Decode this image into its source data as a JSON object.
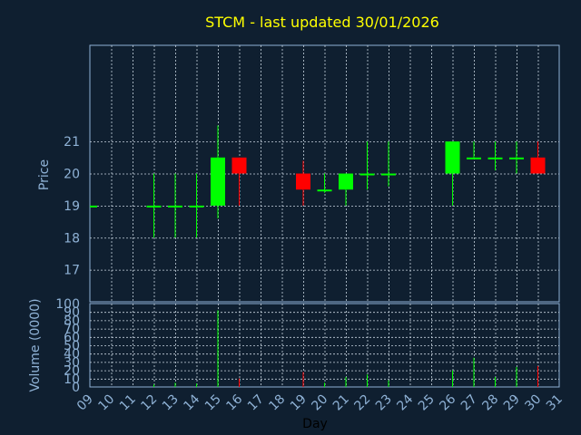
{
  "chart_data": [
    {
      "type": "candlestick",
      "title": "STCM - last updated 30/01/2026",
      "ylabel": "Price",
      "ylim": [
        16,
        24
      ],
      "yticks": [
        17,
        18,
        19,
        20,
        21
      ],
      "grid": true,
      "candles": [
        {
          "day": 9,
          "open": 19.0,
          "high": 19.0,
          "low": 19.0,
          "close": 19.0
        },
        {
          "day": 12,
          "open": 19.0,
          "high": 20.0,
          "low": 18.0,
          "close": 19.0
        },
        {
          "day": 13,
          "open": 19.0,
          "high": 20.0,
          "low": 18.0,
          "close": 19.0
        },
        {
          "day": 14,
          "open": 19.0,
          "high": 20.0,
          "low": 18.0,
          "close": 19.0
        },
        {
          "day": 15,
          "open": 19.0,
          "high": 21.5,
          "low": 18.6,
          "close": 20.5
        },
        {
          "day": 16,
          "open": 20.5,
          "high": 20.5,
          "low": 19.0,
          "close": 20.0
        },
        {
          "day": 19,
          "open": 20.0,
          "high": 20.4,
          "low": 19.0,
          "close": 19.5
        },
        {
          "day": 20,
          "open": 19.45,
          "high": 20.0,
          "low": 19.4,
          "close": 19.5
        },
        {
          "day": 21,
          "open": 19.5,
          "high": 20.0,
          "low": 19.0,
          "close": 20.0
        },
        {
          "day": 22,
          "open": 20.0,
          "high": 21.0,
          "low": 19.5,
          "close": 20.0
        },
        {
          "day": 23,
          "open": 20.0,
          "high": 21.0,
          "low": 19.6,
          "close": 20.0
        },
        {
          "day": 26,
          "open": 20.0,
          "high": 21.0,
          "low": 19.0,
          "close": 21.0
        },
        {
          "day": 27,
          "open": 20.5,
          "high": 21.0,
          "low": 20.5,
          "close": 20.5
        },
        {
          "day": 28,
          "open": 20.5,
          "high": 21.0,
          "low": 20.1,
          "close": 20.5
        },
        {
          "day": 29,
          "open": 20.5,
          "high": 21.0,
          "low": 20.0,
          "close": 20.5
        },
        {
          "day": 30,
          "open": 20.5,
          "high": 21.0,
          "low": 20.0,
          "close": 20.0
        }
      ]
    },
    {
      "type": "bar",
      "ylabel": "Volume (0000)",
      "xlabel": "Day",
      "ylim": [
        0,
        100
      ],
      "yticks": [
        0,
        10,
        20,
        30,
        40,
        50,
        60,
        70,
        80,
        90,
        100
      ],
      "xticks": [
        "09",
        "10",
        "11",
        "12",
        "13",
        "14",
        "15",
        "16",
        "17",
        "18",
        "19",
        "20",
        "21",
        "22",
        "23",
        "24",
        "25",
        "26",
        "27",
        "28",
        "29",
        "30",
        "31"
      ],
      "grid": true,
      "bars": [
        {
          "day": 9,
          "value": 0
        },
        {
          "day": 12,
          "value": 3,
          "direction": "up"
        },
        {
          "day": 13,
          "value": 5,
          "direction": "up"
        },
        {
          "day": 14,
          "value": 4,
          "direction": "up"
        },
        {
          "day": 15,
          "value": 92,
          "direction": "up"
        },
        {
          "day": 16,
          "value": 10,
          "direction": "down"
        },
        {
          "day": 19,
          "value": 18,
          "direction": "down"
        },
        {
          "day": 20,
          "value": 5,
          "direction": "up"
        },
        {
          "day": 21,
          "value": 12,
          "direction": "up"
        },
        {
          "day": 22,
          "value": 15,
          "direction": "up"
        },
        {
          "day": 23,
          "value": 8,
          "direction": "up"
        },
        {
          "day": 26,
          "value": 20,
          "direction": "up"
        },
        {
          "day": 27,
          "value": 35,
          "direction": "up"
        },
        {
          "day": 28,
          "value": 12,
          "direction": "up"
        },
        {
          "day": 29,
          "value": 24,
          "direction": "up"
        },
        {
          "day": 30,
          "value": 25,
          "direction": "down"
        }
      ]
    }
  ],
  "colors": {
    "background": "#0f1f30",
    "frame": "#8fb2d6",
    "grid": "#c8d4e0",
    "up": "#00ff00",
    "down": "#ff0000",
    "title": "#ffff00",
    "text": "#8fb2d6",
    "xlabel": "#000000"
  }
}
